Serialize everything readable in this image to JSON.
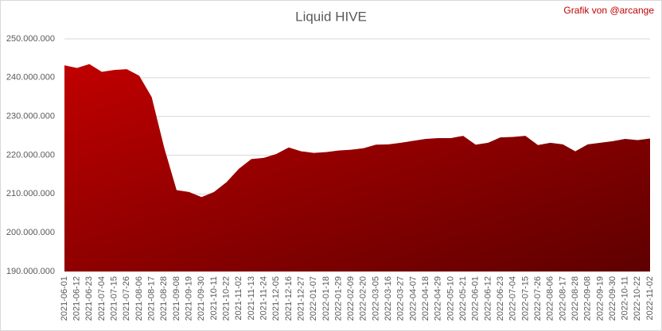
{
  "chart_data": {
    "type": "area",
    "title": "Liquid HIVE",
    "subtitle": "Grafik von @arcange",
    "categories": [
      "2021-06-01",
      "2021-06-12",
      "2021-06-23",
      "2021-07-04",
      "2021-07-15",
      "2021-07-26",
      "2021-08-06",
      "2021-08-17",
      "2021-08-28",
      "2021-09-08",
      "2021-09-19",
      "2021-09-30",
      "2021-10-11",
      "2021-10-22",
      "2021-11-02",
      "2021-11-13",
      "2021-11-24",
      "2021-12-05",
      "2021-12-16",
      "2021-12-27",
      "2022-01-07",
      "2022-01-18",
      "2022-01-29",
      "2022-02-09",
      "2022-02-20",
      "2022-03-05",
      "2022-03-16",
      "2022-03-27",
      "2022-04-07",
      "2022-04-18",
      "2022-04-29",
      "2022-05-10",
      "2022-05-21",
      "2022-06-01",
      "2022-06-12",
      "2022-06-23",
      "2022-07-04",
      "2022-07-15",
      "2022-07-26",
      "2022-08-06",
      "2022-08-17",
      "2022-08-28",
      "2022-09-08",
      "2022-09-19",
      "2022-09-30",
      "2022-10-11",
      "2022-10-22",
      "2022-11-02"
    ],
    "values": [
      243200000,
      242500000,
      243500000,
      241500000,
      242000000,
      242200000,
      240500000,
      235000000,
      222000000,
      211000000,
      210500000,
      209200000,
      210500000,
      213000000,
      216500000,
      219000000,
      219300000,
      220300000,
      222000000,
      221000000,
      220600000,
      220800000,
      221200000,
      221400000,
      221800000,
      222700000,
      222800000,
      223200000,
      223700000,
      224200000,
      224400000,
      224400000,
      225000000,
      222700000,
      223200000,
      224600000,
      224700000,
      225000000,
      222600000,
      223200000,
      222800000,
      221000000,
      222800000,
      223200000,
      223600000,
      224200000,
      223900000,
      224300000
    ],
    "color": "#c00000",
    "ylim": [
      190000000,
      250000000
    ],
    "yticks": [
      {
        "value": 190000000,
        "label": "190.000.000"
      },
      {
        "value": 200000000,
        "label": "200.000.000"
      },
      {
        "value": 210000000,
        "label": "210.000.000"
      },
      {
        "value": 220000000,
        "label": "220.000.000"
      },
      {
        "value": 230000000,
        "label": "230.000.000"
      },
      {
        "value": 240000000,
        "label": "240.000.000"
      },
      {
        "value": 250000000,
        "label": "250.000.000"
      }
    ],
    "grid": true
  }
}
